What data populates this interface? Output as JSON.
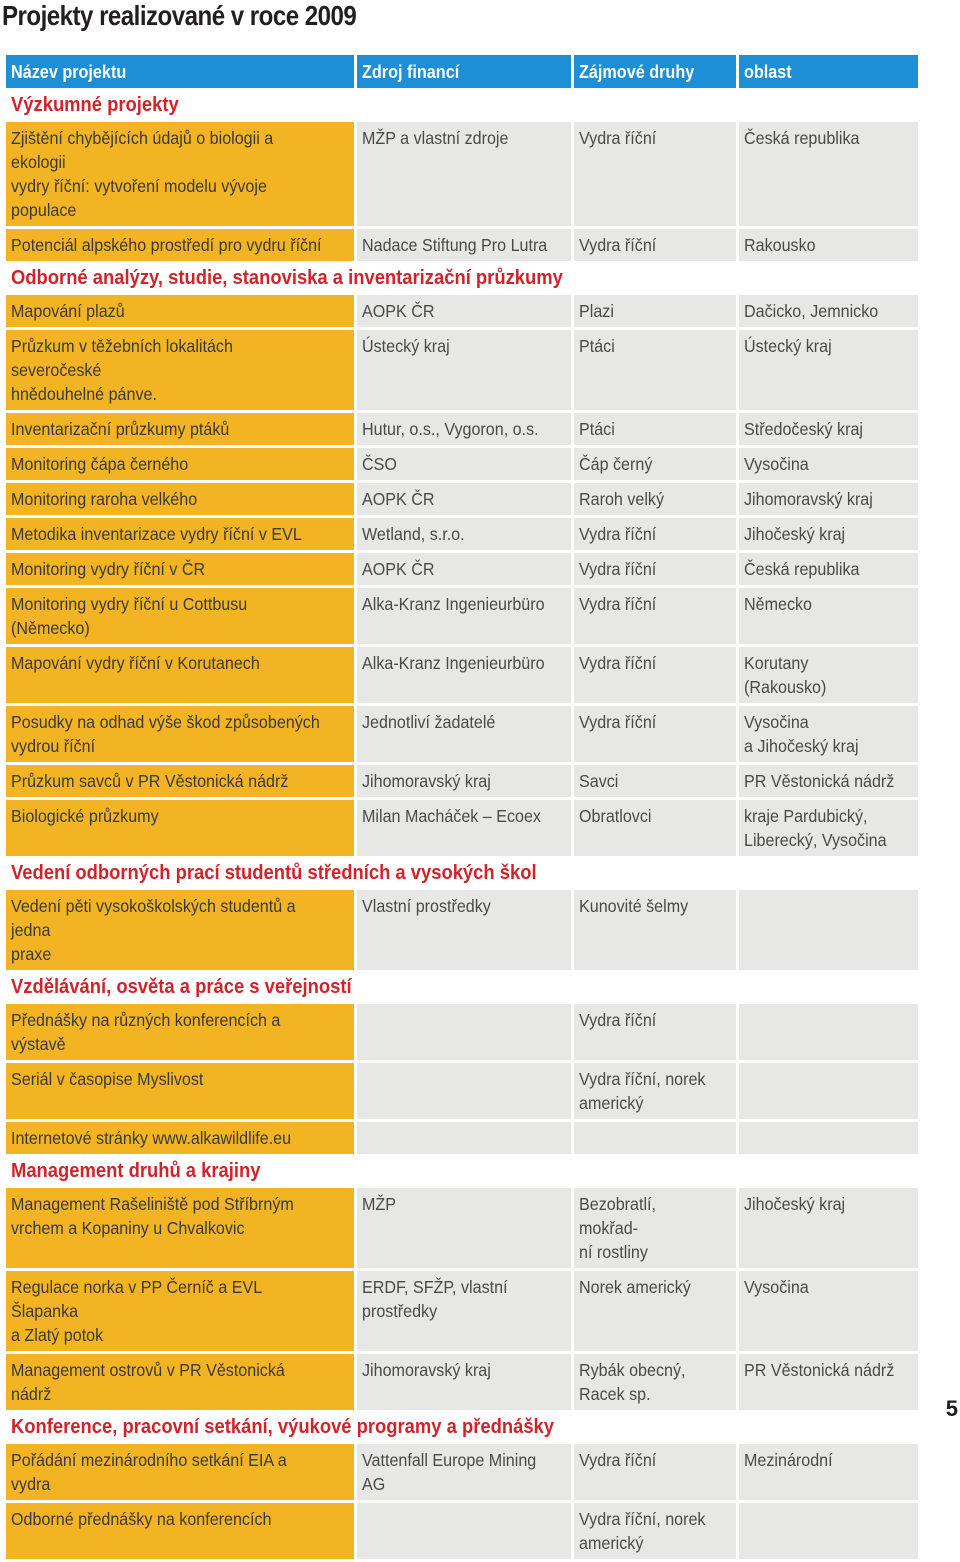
{
  "page": {
    "title": "Projekty realizované v roce 2009",
    "page_number": "5"
  },
  "table": {
    "headers": [
      "Název projektu",
      "Zdroj financí",
      "Zájmové druhy",
      "oblast"
    ],
    "sections": [
      {
        "title": "Výzkumné projekty",
        "rows": [
          [
            "Zjištění chybějících údajů o biologii a ekologii\nvydry říční: vytvoření modelu vývoje populace",
            "MŽP a vlastní zdroje",
            "Vydra říční",
            "Česká republika"
          ],
          [
            "Potenciál alpského prostředí pro vydru říční",
            "Nadace Stiftung Pro Lutra",
            "Vydra říční",
            "Rakousko"
          ]
        ]
      },
      {
        "title": "Odborné analýzy, studie, stanoviska a inventarizační průzkumy",
        "rows": [
          [
            "Mapování plazů",
            "AOPK ČR",
            "Plazi",
            "Dačicko, Jemnicko"
          ],
          [
            "Průzkum v těžebních lokalitách severočeské\nhnědouhelné pánve.",
            "Ústecký kraj",
            "Ptáci",
            "Ústecký kraj"
          ],
          [
            "Inventarizační průzkumy ptáků",
            "Hutur, o.s., Vygoron, o.s.",
            "Ptáci",
            "Středočeský kraj"
          ],
          [
            "Monitoring čápa černého",
            "ČSO",
            "Čáp černý",
            "Vysočina"
          ],
          [
            "Monitoring raroha velkého",
            "AOPK ČR",
            "Raroh velký",
            "Jihomoravský kraj"
          ],
          [
            "Metodika inventarizace vydry říční v EVL",
            "Wetland, s.r.o.",
            "Vydra říční",
            "Jihočeský kraj"
          ],
          [
            "Monitoring vydry říční v ČR",
            "AOPK ČR",
            "Vydra říční",
            "Česká republika"
          ],
          [
            "Monitoring vydry říční u Cottbusu (Německo)",
            "Alka-Kranz Ingenieurbüro",
            "Vydra říční",
            "Německo"
          ],
          [
            "Mapování vydry říční v Korutanech",
            "Alka-Kranz Ingenieurbüro",
            "Vydra říční",
            "Korutany\n(Rakousko)"
          ],
          [
            "Posudky na odhad výše škod způsobených\nvydrou říční",
            "Jednotliví žadatelé",
            "Vydra říční",
            "Vysočina\na Jihočeský kraj"
          ],
          [
            "Průzkum savců v PR Věstonická nádrž",
            "Jihomoravský kraj",
            "Savci",
            "PR Věstonická nádrž"
          ],
          [
            "Biologické průzkumy",
            "Milan Macháček – Ecoex",
            "Obratlovci",
            "kraje Pardubický,\nLiberecký, Vysočina"
          ]
        ]
      },
      {
        "title": "Vedení odborných prací studentů středních a vysokých škol",
        "rows": [
          [
            "Vedení pěti vysokoškolských studentů a jedna\npraxe",
            "Vlastní prostředky",
            "Kunovité šelmy",
            ""
          ]
        ]
      },
      {
        "title": "Vzdělávání, osvěta a práce s veřejností",
        "rows": [
          [
            "Přednášky na různých konferencích a výstavě",
            "",
            "Vydra říční",
            ""
          ],
          [
            "Seriál v časopise Myslivost",
            "",
            "Vydra říční, norek\namerický",
            ""
          ],
          [
            "Internetové stránky www.alkawildlife.eu",
            "",
            "",
            ""
          ]
        ]
      },
      {
        "title": "Management  druhů a krajiny",
        "rows": [
          [
            "Management Rašeliniště pod Stříbrným\nvrchem a Kopaniny u Chvalkovic",
            "MŽP",
            "Bezobratlí, mokřad-\nní rostliny",
            "Jihočeský kraj"
          ],
          [
            "Regulace norka v PP Černíč a EVL Šlapanka\na Zlatý potok",
            "ERDF, SFŽP, vlastní\nprostředky",
            "Norek americký",
            "Vysočina"
          ],
          [
            "Management ostrovů v PR Věstonická nádrž",
            "Jihomoravský kraj",
            "Rybák obecný,\nRacek sp.",
            "PR Věstonická nádrž"
          ]
        ]
      },
      {
        "title": "Konference, pracovní setkání, výukové programy a přednášky",
        "rows": [
          [
            "Pořádání mezinárodního setkání EIA a vydra",
            "Vattenfall Europe Mining\nAG",
            "Vydra říční",
            "Mezinárodní"
          ],
          [
            "Odborné přednášky na konferencích",
            "",
            "Vydra říční, norek\namerický",
            ""
          ]
        ]
      }
    ]
  },
  "colors": {
    "header_bg": "#1d8fd6",
    "project_col_bg": "#f2b422",
    "other_col_bg": "#e7e7e6",
    "section_title": "#d2232a"
  }
}
